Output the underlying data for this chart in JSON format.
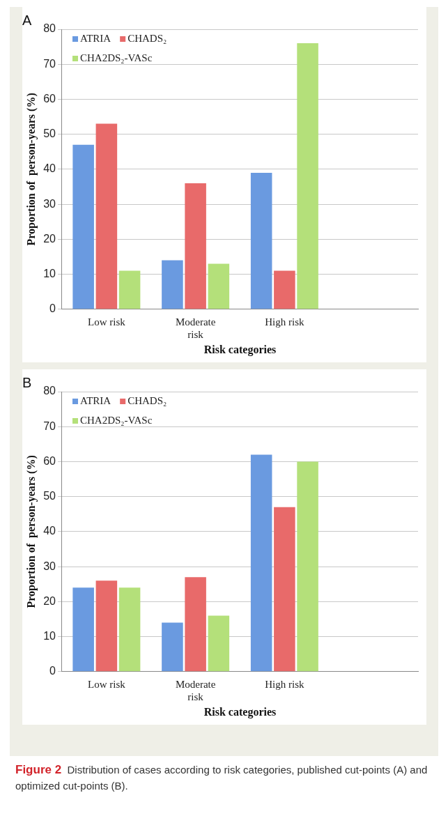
{
  "chart_data": [
    {
      "type": "bar",
      "title": "A",
      "xlabel": "Risk categories",
      "ylabel": "Proportion of  person-years (%)",
      "categories": [
        "Low risk",
        "Moderate risk",
        "High risk",
        null
      ],
      "series": [
        {
          "name": "ATRIA",
          "color": "#6a9ae0",
          "values": [
            47,
            14,
            39,
            null
          ]
        },
        {
          "name": "CHADS₂",
          "color": "#e86a6a",
          "values": [
            53,
            36,
            11,
            null
          ]
        },
        {
          "name": "CHA2DS₂-VASc",
          "color": "#b4e07a",
          "values": [
            11,
            13,
            76,
            null
          ]
        }
      ],
      "ylim": [
        0,
        80
      ],
      "yticks": [
        0,
        10,
        20,
        30,
        40,
        50,
        60,
        70,
        80
      ],
      "grid": "y",
      "legend": "top left"
    },
    {
      "type": "bar",
      "title": "B",
      "xlabel": "Risk categories",
      "ylabel": "Proportion of  person-years (%)",
      "categories": [
        "Low risk",
        "Moderate risk",
        "High risk",
        null
      ],
      "series": [
        {
          "name": "ATRIA",
          "color": "#6a9ae0",
          "values": [
            24,
            14,
            62,
            null
          ]
        },
        {
          "name": "CHADS₂",
          "color": "#e86a6a",
          "values": [
            26,
            27,
            47,
            null
          ]
        },
        {
          "name": "CHA2DS₂-VASc",
          "color": "#b4e07a",
          "values": [
            24,
            16,
            60,
            null
          ]
        }
      ],
      "ylim": [
        0,
        80
      ],
      "yticks": [
        0,
        10,
        20,
        30,
        40,
        50,
        60,
        70,
        80
      ],
      "grid": "y",
      "legend": "top left",
      "annotations": [
        "Figure 2 Distribution of cases according to risk categories, published cut-points (A) and optimized cut-points (B)."
      ]
    }
  ]
}
